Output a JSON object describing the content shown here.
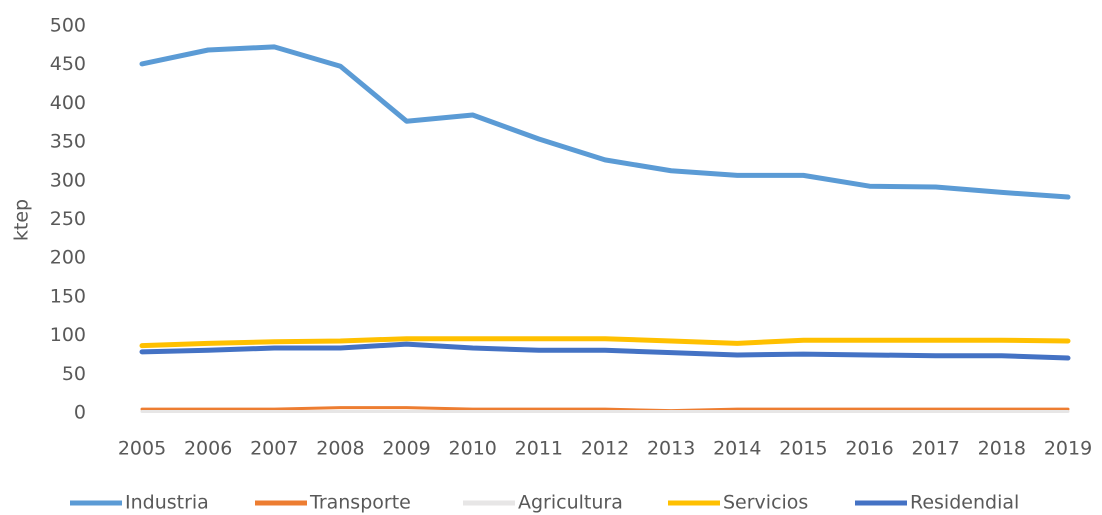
{
  "chart_data": {
    "type": "line",
    "y_label": "ktep",
    "categories": [
      "2005",
      "2006",
      "2007",
      "2008",
      "2009",
      "2010",
      "2011",
      "2012",
      "2013",
      "2014",
      "2015",
      "2016",
      "2017",
      "2018",
      "2019"
    ],
    "series": [
      {
        "name": "Industria",
        "color": "#5b9bd5",
        "values": [
          451,
          469,
          473,
          448,
          377,
          385,
          354,
          327,
          313,
          307,
          307,
          293,
          292,
          285,
          279
        ]
      },
      {
        "name": "Transporte",
        "color": "#ed7d31",
        "values": [
          5,
          5,
          5,
          7,
          7,
          5,
          5,
          5,
          3,
          5,
          5,
          5,
          5,
          5,
          5
        ]
      },
      {
        "name": "Agricultura",
        "color": "#e7e6e6",
        "values": [
          2,
          2,
          2,
          2,
          2,
          2,
          2,
          2,
          2,
          2,
          2,
          2,
          2,
          2,
          2
        ]
      },
      {
        "name": "Servicios",
        "color": "#ffc000",
        "values": [
          87,
          90,
          92,
          93,
          96,
          96,
          96,
          96,
          93,
          90,
          94,
          94,
          94,
          94,
          93
        ]
      },
      {
        "name": "Residendial",
        "color": "#4472c4",
        "values": [
          79,
          81,
          84,
          84,
          89,
          84,
          81,
          81,
          78,
          75,
          76,
          75,
          74,
          74,
          71
        ]
      }
    ],
    "ylim": [
      0,
      500
    ],
    "yticks": [
      0,
      50,
      100,
      150,
      200,
      250,
      300,
      350,
      400,
      450,
      500
    ],
    "grid": false,
    "legend": "bottom"
  }
}
